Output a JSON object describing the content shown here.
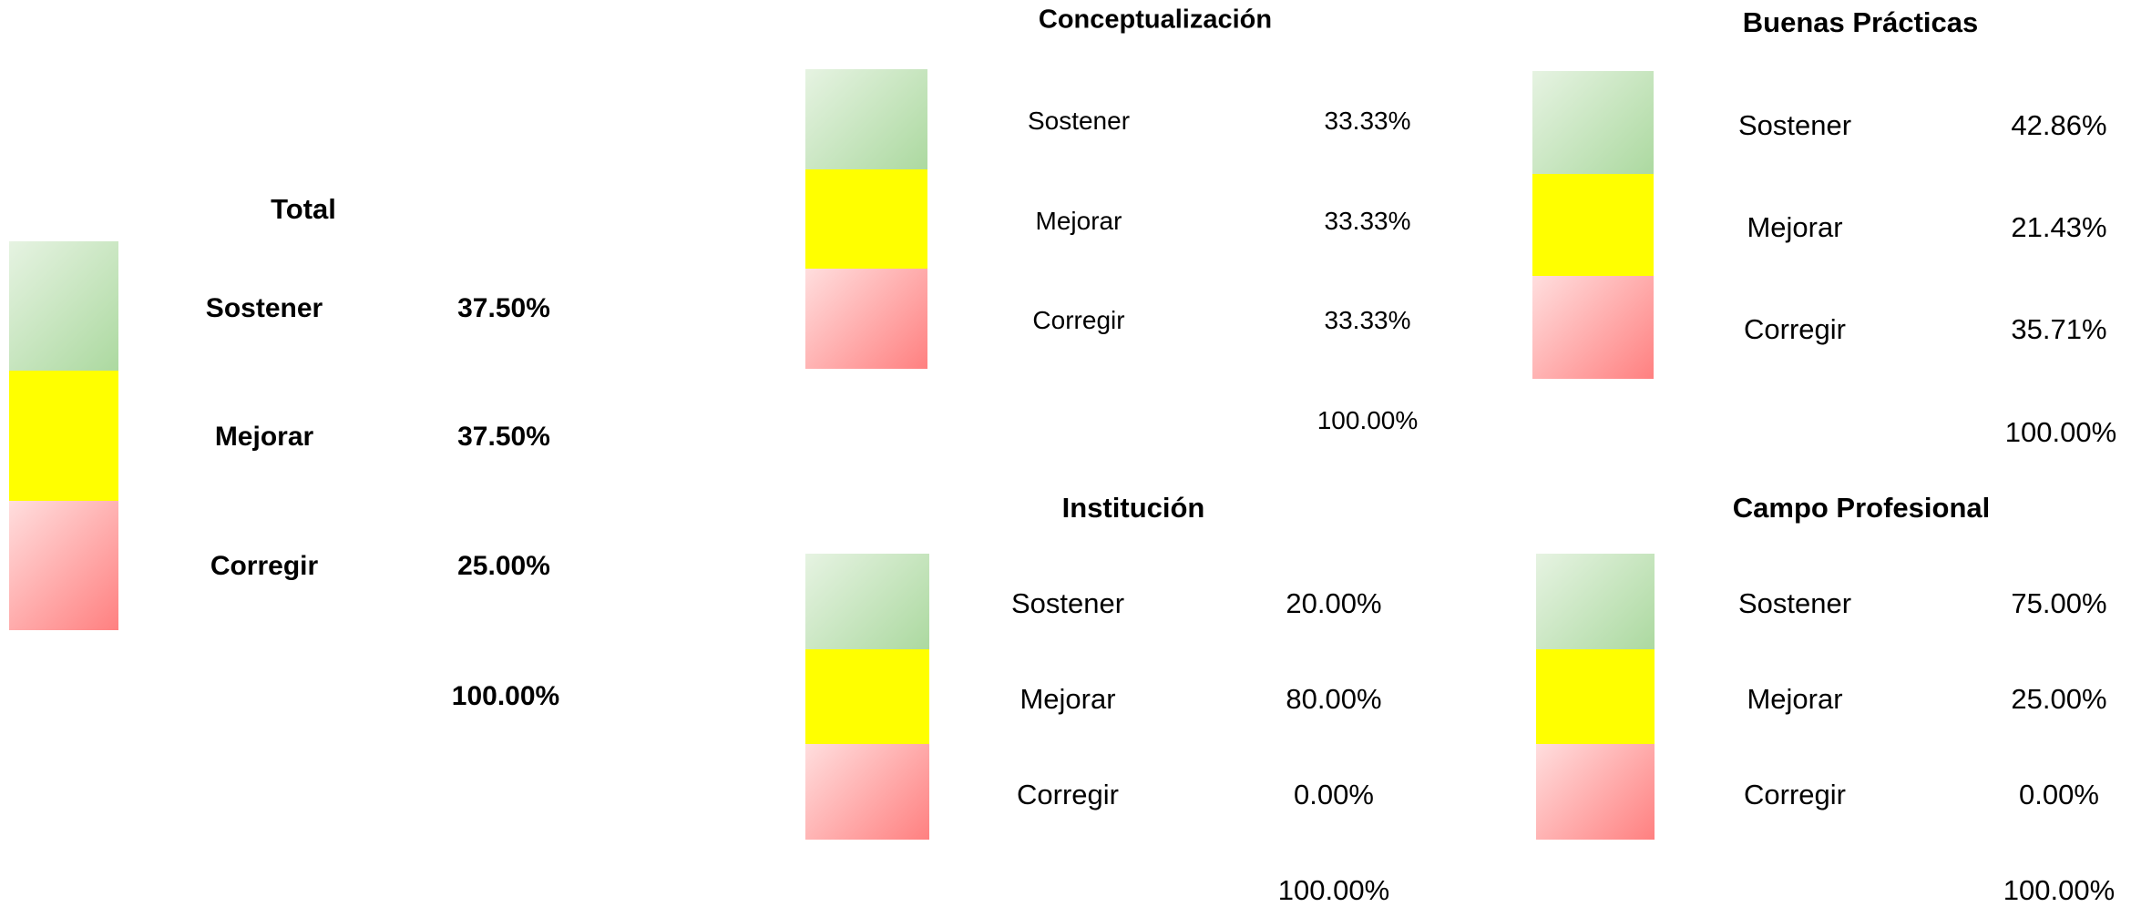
{
  "panels": [
    {
      "title": "Total",
      "rows": [
        {
          "label": "Sostener",
          "value": "37.50%"
        },
        {
          "label": "Mejorar",
          "value": "37.50%"
        },
        {
          "label": "Corregir",
          "value": "25.00%"
        }
      ],
      "total": "100.00%"
    },
    {
      "title": "Conceptualización",
      "rows": [
        {
          "label": "Sostener",
          "value": "33.33%"
        },
        {
          "label": "Mejorar",
          "value": "33.33%"
        },
        {
          "label": "Corregir",
          "value": "33.33%"
        }
      ],
      "total": "100.00%"
    },
    {
      "title": "Buenas Prácticas",
      "rows": [
        {
          "label": "Sostener",
          "value": "42.86%"
        },
        {
          "label": "Mejorar",
          "value": "21.43%"
        },
        {
          "label": "Corregir",
          "value": "35.71%"
        }
      ],
      "total": "100.00%"
    },
    {
      "title": "Institución",
      "rows": [
        {
          "label": "Sostener",
          "value": "20.00%"
        },
        {
          "label": "Mejorar",
          "value": "80.00%"
        },
        {
          "label": "Corregir",
          "value": "0.00%"
        }
      ],
      "total": "100.00%"
    },
    {
      "title": "Campo Profesional",
      "rows": [
        {
          "label": "Sostener",
          "value": "75.00%"
        },
        {
          "label": "Mejorar",
          "value": "25.00%"
        },
        {
          "label": "Corregir",
          "value": "0.00%"
        }
      ],
      "total": "100.00%"
    }
  ]
}
